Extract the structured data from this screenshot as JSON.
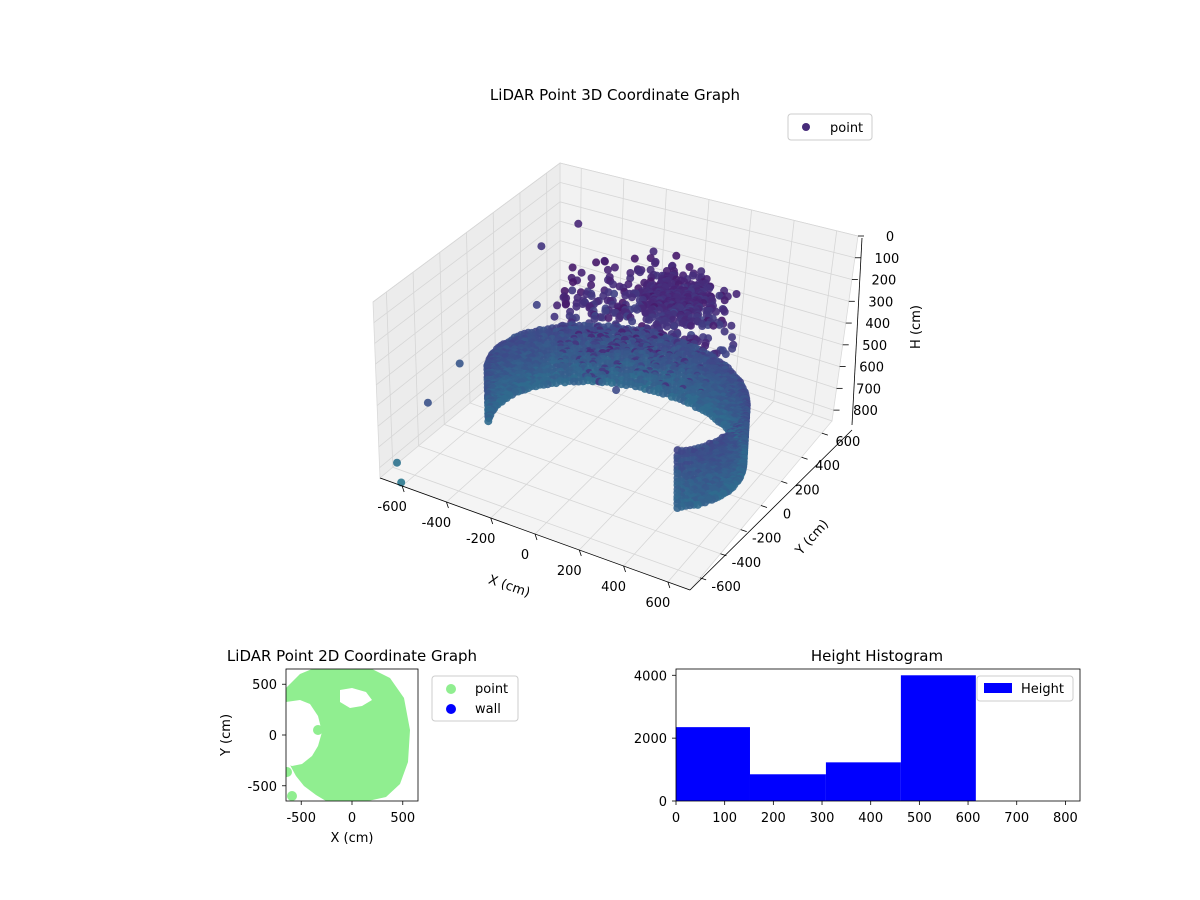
{
  "chart_data": [
    {
      "type": "scatter",
      "title": "LiDAR Point 3D Coordinate Graph",
      "xlabel": "X (cm)",
      "ylabel": "Y (cm)",
      "zlabel": "H (cm)",
      "xlim": [
        -700,
        700
      ],
      "ylim": [
        -700,
        700
      ],
      "zlim": [
        0,
        850
      ],
      "z_inverted": true,
      "xticks": [
        "-600",
        "-400",
        "-200",
        "0",
        "200",
        "400",
        "600"
      ],
      "yticks": [
        "-600",
        "-400",
        "-200",
        "0",
        "200",
        "400",
        "600"
      ],
      "zticks": [
        "0",
        "100",
        "200",
        "300",
        "400",
        "500",
        "600",
        "700",
        "800"
      ],
      "colormap": "viridis",
      "grid": true,
      "legend": "top-right",
      "series": [
        {
          "name": "point",
          "color": "#472c7a"
        }
      ]
    },
    {
      "type": "scatter",
      "title": "LiDAR Point 2D Coordinate Graph",
      "xlabel": "X (cm)",
      "ylabel": "Y (cm)",
      "xlim": [
        -650,
        650
      ],
      "ylim": [
        -650,
        650
      ],
      "xticks": [
        "-500",
        "0",
        "500"
      ],
      "yticks": [
        "-500",
        "0",
        "500"
      ],
      "legend": "outside-right",
      "series": [
        {
          "name": "point",
          "color": "#90ee90"
        },
        {
          "name": "wall",
          "color": "#0000ff"
        }
      ]
    },
    {
      "type": "bar",
      "title": "Height Histogram",
      "xlim": [
        0,
        830
      ],
      "ylim": [
        0,
        4200
      ],
      "xticks": [
        "0",
        "100",
        "200",
        "300",
        "400",
        "500",
        "600",
        "700",
        "800"
      ],
      "yticks": [
        "0",
        "2000",
        "4000"
      ],
      "legend": "top-right",
      "series": [
        {
          "name": "Height",
          "color": "#0000ff",
          "bins": [
            [
              0,
              152,
              2350
            ],
            [
              152,
              308,
              850
            ],
            [
              308,
              462,
              1230
            ],
            [
              462,
              616,
              4000
            ]
          ]
        }
      ]
    }
  ]
}
